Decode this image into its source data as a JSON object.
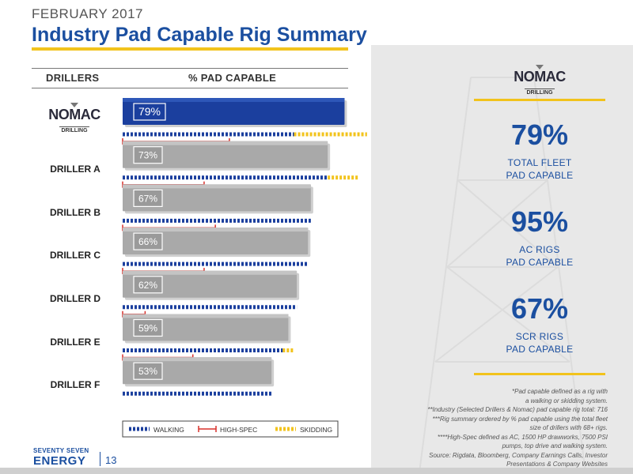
{
  "header": {
    "date": "FEBRUARY 2017",
    "title": "Industry Pad Capable Rig Summary"
  },
  "table_headers": {
    "drillers": "DRILLERS",
    "pct": "% PAD CAPABLE"
  },
  "logo": {
    "word": "NOMAC",
    "sub": "DRILLING"
  },
  "chart_data": {
    "type": "bar",
    "orientation": "horizontal",
    "categories": [
      "NOMAC",
      "DRILLER A",
      "DRILLER B",
      "DRILLER C",
      "DRILLER D",
      "DRILLER E",
      "DRILLER F"
    ],
    "values": [
      79,
      73,
      67,
      66,
      62,
      59,
      53
    ],
    "value_labels": [
      "79%",
      "73%",
      "67%",
      "66%",
      "62%",
      "59%",
      "53%"
    ],
    "bar_colors": [
      "#1b3f9e",
      "#a9a9a9",
      "#a9a9a9",
      "#a9a9a9",
      "#a9a9a9",
      "#a9a9a9",
      "#a9a9a9"
    ],
    "sub_series": [
      {
        "name": "WALKING",
        "color": "#1b3f9e",
        "values": [
          61,
          73,
          67,
          66,
          62,
          57,
          53
        ]
      },
      {
        "name": "HIGH-SPEC",
        "color": "#d9302b",
        "values": [
          38,
          29,
          33,
          29,
          8,
          25,
          0
        ]
      },
      {
        "name": "SKIDDING",
        "color": "#f2c31c",
        "values": [
          26,
          11,
          0,
          0,
          0,
          4,
          0
        ]
      }
    ],
    "xlim": [
      0,
      100
    ],
    "legend": {
      "position": "bottom",
      "items": [
        "WALKING",
        "HIGH-SPEC",
        "SKIDDING"
      ]
    }
  },
  "summary": {
    "stats": [
      {
        "value": "79%",
        "line1": "TOTAL FLEET",
        "line2": "PAD CAPABLE"
      },
      {
        "value": "95%",
        "line1": "AC RIGS",
        "line2": "PAD CAPABLE"
      },
      {
        "value": "67%",
        "line1": "SCR RIGS",
        "line2": "PAD CAPABLE"
      }
    ]
  },
  "notes": [
    "*Pad capable defined as a rig with",
    "a walking or skidding system.",
    "**Industry (Selected Drillers & Nomac) pad capable rig total: 716",
    "***Rig summary ordered by % pad capable using the total fleet",
    "size of drillers with 68+ rigs.",
    "****High-Spec defined as AC, 1500 HP drawworks, 7500 PSI",
    "pumps, top drive and walking system.",
    "Source: Rigdata, Bloomberg, Company Earnings Calls, Investor",
    "Presentations & Company Websites"
  ],
  "footer": {
    "brand_top": "SEVENTY SEVEN",
    "brand_bottom": "ENERGY",
    "page": "13"
  },
  "colors": {
    "accent_blue": "#1b4fa0",
    "accent_yellow": "#f2c31c",
    "high_spec_red": "#d9302b",
    "bar_gray": "#a9a9a9"
  }
}
